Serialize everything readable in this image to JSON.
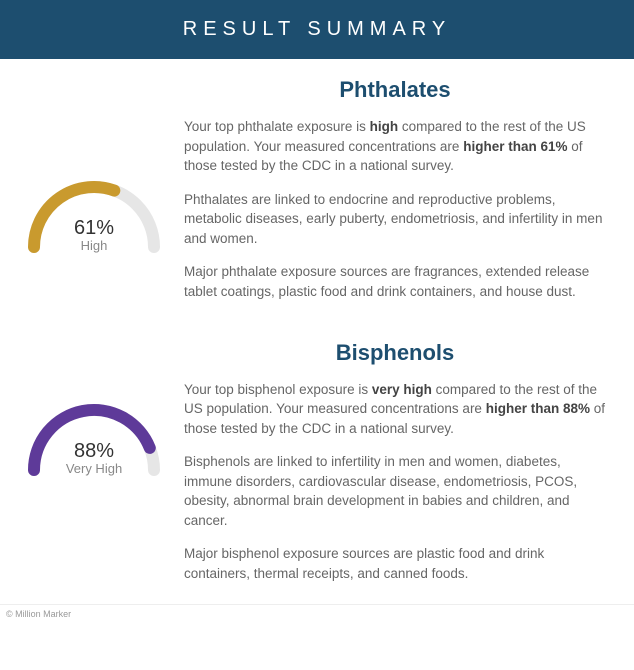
{
  "header": {
    "title": "RESULT SUMMARY"
  },
  "colors": {
    "header_bg": "#1d4e6f",
    "header_text": "#ffffff",
    "title_color": "#1d4e6f",
    "body_text": "#666666",
    "gauge_track": "#e6e6e6"
  },
  "sections": [
    {
      "title": "Phthalates",
      "gauge": {
        "type": "semicircle-gauge",
        "percent": 61,
        "percent_text": "61%",
        "label": "High",
        "arc_color": "#c99a2e",
        "track_color": "#e6e6e6",
        "stroke_width": 12,
        "radius": 60
      },
      "paras": [
        {
          "pre": "Your top phthalate exposure is ",
          "b1": "high",
          "mid": " compared to the rest of the US population. Your measured concentrations are ",
          "b2": "higher than 61%",
          "post": " of those tested by the CDC in a national survey."
        },
        {
          "pre": "Phthalates are linked to endocrine and reproductive problems, metabolic diseases, early puberty, endometriosis, and infertility in men and women.",
          "b1": "",
          "mid": "",
          "b2": "",
          "post": ""
        },
        {
          "pre": "Major phthalate exposure sources are fragrances, extended release tablet coatings, plastic food and drink containers, and house dust.",
          "b1": "",
          "mid": "",
          "b2": "",
          "post": ""
        }
      ]
    },
    {
      "title": "Bisphenols",
      "gauge": {
        "type": "semicircle-gauge",
        "percent": 88,
        "percent_text": "88%",
        "label": "Very High",
        "arc_color": "#5e3a99",
        "track_color": "#e6e6e6",
        "stroke_width": 12,
        "radius": 60
      },
      "paras": [
        {
          "pre": "Your top bisphenol exposure is ",
          "b1": "very high",
          "mid": " compared to the rest of the US population. Your measured concentrations are ",
          "b2": "higher than 88%",
          "post": " of those tested by the CDC in a national survey."
        },
        {
          "pre": "Bisphenols are linked to infertility in men and women, diabetes, immune disorders, cardiovascular disease, endometriosis, PCOS, obesity, abnormal brain development in babies and children, and cancer.",
          "b1": "",
          "mid": "",
          "b2": "",
          "post": ""
        },
        {
          "pre": "Major bisphenol exposure sources are plastic food and drink containers, thermal receipts, and canned foods.",
          "b1": "",
          "mid": "",
          "b2": "",
          "post": ""
        }
      ]
    }
  ],
  "footer": {
    "credit": "© Million Marker"
  }
}
